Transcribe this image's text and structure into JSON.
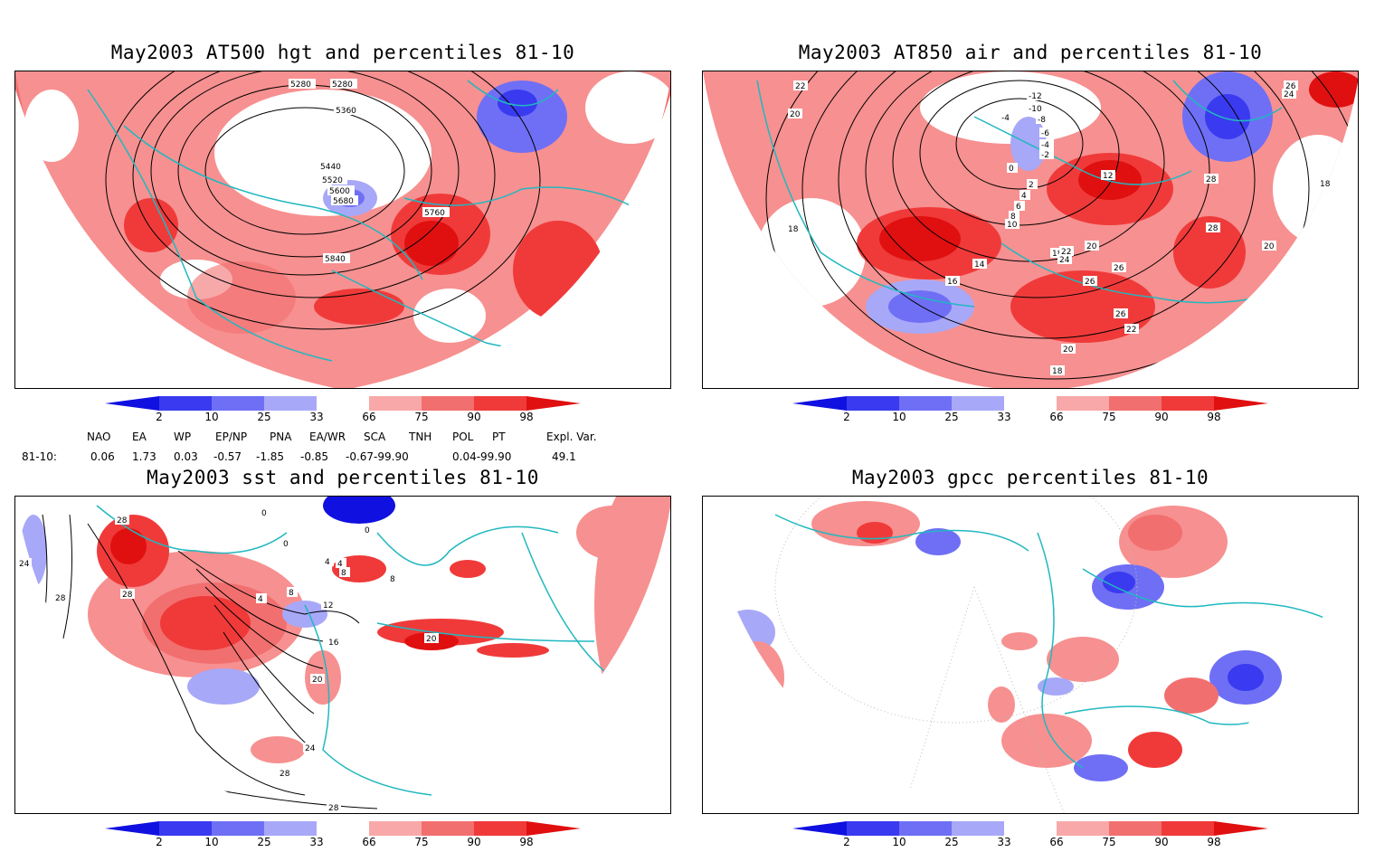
{
  "panels": [
    {
      "title": "May2003 AT500 hgt and percentiles 81-10",
      "contour_labels": [
        "5280",
        "5280",
        "5360",
        "5440",
        "5520",
        "5600",
        "5680",
        "5760",
        "5840"
      ]
    },
    {
      "title": "May2003 AT850 air and percentiles 81-10",
      "contour_labels": [
        "22",
        "20",
        "18",
        "-12",
        "-10",
        "-8",
        "-6",
        "-4",
        "-4",
        "-2",
        "0",
        "2",
        "4",
        "6",
        "8",
        "10",
        "12",
        "14",
        "16",
        "18",
        "20",
        "22",
        "24",
        "26",
        "26",
        "26",
        "26",
        "28",
        "28",
        "18",
        "20",
        "24",
        "22",
        "20",
        "18"
      ]
    },
    {
      "title": "May2003 sst and percentiles 81-10",
      "contour_labels": [
        "28",
        "28",
        "24",
        "28",
        "0",
        "0",
        "0",
        "4",
        "4",
        "8",
        "8",
        "4",
        "8",
        "12",
        "16",
        "20",
        "20",
        "24",
        "28",
        "28"
      ]
    },
    {
      "title": "May2003 gpcc percentiles 81-10",
      "contour_labels": []
    }
  ],
  "colorbar": {
    "ticks": [
      "2",
      "10",
      "25",
      "33",
      "66",
      "75",
      "90",
      "98"
    ],
    "colors": [
      "#1010e0",
      "#3a3af0",
      "#6f6ff5",
      "#a8a8f8",
      "#ffffff",
      "#f8a8a8",
      "#f26f6f",
      "#f03a3a",
      "#e01010"
    ]
  },
  "indices": {
    "headers": [
      "NAO",
      "EA",
      "WP",
      "EP/NP",
      "PNA",
      "EA/WR",
      "SCA",
      "TNH",
      "POL",
      "PT",
      "Expl. Var."
    ],
    "row_label": "81-10:",
    "values": [
      "0.06",
      "1.73",
      "0.03",
      "-0.57",
      "-1.85",
      "-0.85",
      "-0.67-99.90",
      "0.04-99.90",
      "49.1"
    ]
  }
}
